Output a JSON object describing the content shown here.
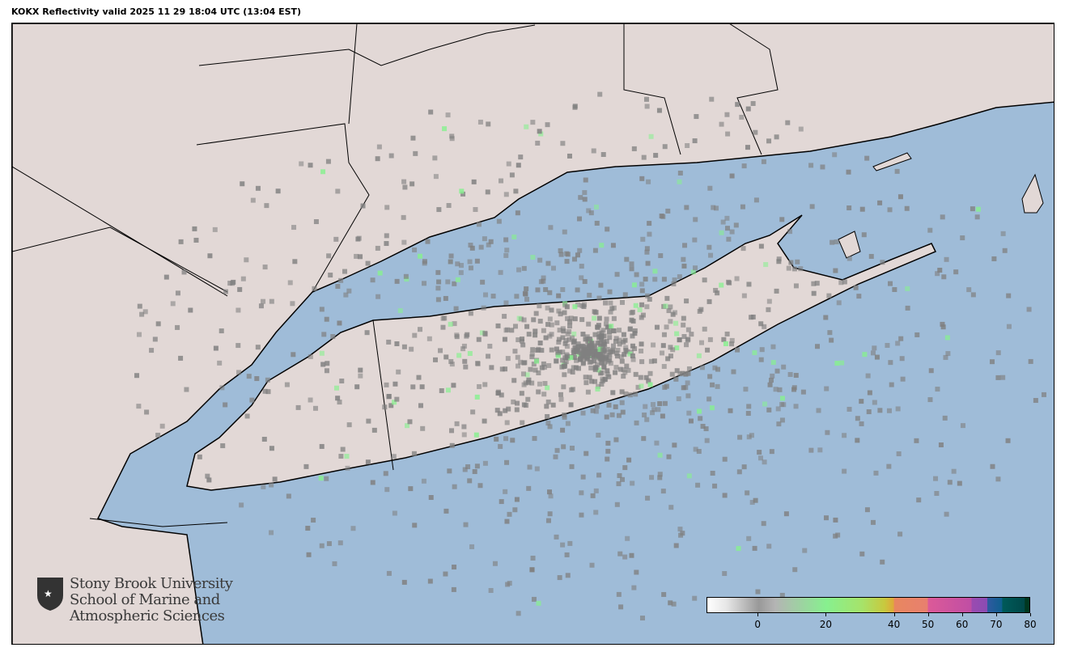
{
  "title": "KOKX Reflectivity valid 2025 11 29 18:04 UTC (13:04 EST)",
  "colors": {
    "ocean": "#9fbcd8",
    "land": "#e2d8d6",
    "border": "#000000",
    "radar_low": "#808080",
    "radar_20": "#87f08f"
  },
  "logo": {
    "line1": "Stony Brook University",
    "line2": "School of Marine and",
    "line3": "Atmospheric Sciences",
    "icon": "shield-star-icon"
  },
  "colorbar": {
    "min": -15,
    "max": 80,
    "ticks": [
      {
        "value": 0,
        "label": "0"
      },
      {
        "value": 20,
        "label": "20"
      },
      {
        "value": 40,
        "label": "40"
      },
      {
        "value": 50,
        "label": "50"
      },
      {
        "value": 60,
        "label": "60"
      },
      {
        "value": 70,
        "label": "70"
      },
      {
        "value": 80,
        "label": "80"
      }
    ]
  }
}
